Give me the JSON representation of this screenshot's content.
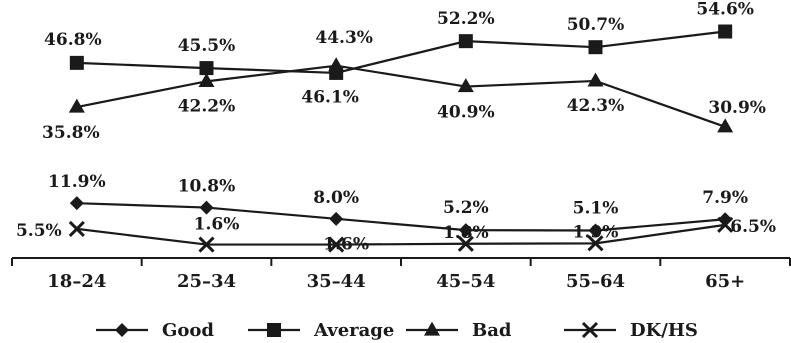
{
  "chart_data": {
    "type": "line",
    "categories": [
      "18–24",
      "25–34",
      "35–44",
      "45–54",
      "55–64",
      "65+"
    ],
    "series": [
      {
        "name": "Good",
        "marker": "diamond",
        "values": [
          11.9,
          10.8,
          8.0,
          5.2,
          5.1,
          7.9
        ],
        "labels": [
          "11.9%",
          "10.8%",
          "8.0%",
          "5.2%",
          "5.1%",
          "7.9%"
        ]
      },
      {
        "name": "Average",
        "marker": "square",
        "values": [
          46.8,
          45.5,
          44.3,
          52.2,
          50.7,
          54.6
        ],
        "labels": [
          "46.8%",
          "45.5%",
          "44.3%",
          "52.2%",
          "50.7%",
          "54.6%"
        ]
      },
      {
        "name": "Bad",
        "marker": "triangle",
        "values": [
          35.8,
          42.2,
          46.1,
          40.9,
          42.3,
          30.9
        ],
        "labels": [
          "35.8%",
          "42.2%",
          "46.1%",
          "40.9%",
          "42.3%",
          "30.9%"
        ]
      },
      {
        "name": "DK/HS",
        "marker": "x",
        "values": [
          5.5,
          1.6,
          1.6,
          1.8,
          1.9,
          6.5
        ],
        "labels": [
          "5.5%",
          "1.6%",
          "1.6%",
          "1.8%",
          "1.9%",
          "6.5%"
        ]
      }
    ],
    "title": "",
    "xlabel": "",
    "ylabel": "",
    "ylim": [
      0,
      60
    ],
    "grid": false,
    "legend": "bottom",
    "colors": {
      "line": "#1a1a1a"
    }
  }
}
